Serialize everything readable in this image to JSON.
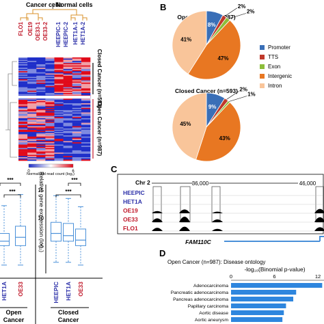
{
  "panel_labels": {
    "b": "B",
    "c": "C",
    "d": "D"
  },
  "panel_a": {
    "group_headers": [
      "Cancer cells",
      "Normal cells"
    ],
    "samples": [
      {
        "name": "FLO1",
        "color": "#c0182a"
      },
      {
        "name": "OE19",
        "color": "#c0182a"
      },
      {
        "name": "OE33-1",
        "color": "#c0182a"
      },
      {
        "name": "OE33-2",
        "color": "#c0182a"
      },
      {
        "name": "HEEPIC-1",
        "color": "#2b2fa8"
      },
      {
        "name": "HEEPIC-2",
        "color": "#2b2fa8"
      },
      {
        "name": "HET1A-1",
        "color": "#2b2fa8"
      },
      {
        "name": "HET1A-2",
        "color": "#2b2fa8"
      }
    ],
    "cluster_labels": [
      "Closed Cancer (n=593)",
      "Open Cancer (n=987)"
    ],
    "colorbar": {
      "min": "0",
      "max": "6",
      "label": "Normalised read count (log₂)"
    }
  },
  "panel_a_box": {
    "y_label": "Relative gene expression (log₂)",
    "y_ticks": [
      "5",
      "10",
      "15"
    ],
    "significance": [
      "***",
      "***",
      "***",
      "***"
    ],
    "groups": [
      {
        "label": "Open Cancer",
        "samples": [
          {
            "name": "HET1A",
            "color": "#2b2fa8",
            "q1": 5.0,
            "median": 5.8,
            "q3": 7.2,
            "lo": 1.5,
            "hi": 12.2
          },
          {
            "name": "OE33",
            "color": "#c0182a",
            "q1": 5.0,
            "median": 6.5,
            "q3": 8.5,
            "lo": 1.5,
            "hi": 14.2
          }
        ]
      },
      {
        "label": "Closed Cancer",
        "samples": [
          {
            "name": "HEEPIC",
            "color": "#2b2fa8",
            "q1": 5.8,
            "median": 7.2,
            "q3": 9.2,
            "lo": 2.0,
            "hi": 14.0
          },
          {
            "name": "HET1A",
            "color": "#2b2fa8",
            "q1": 5.8,
            "median": 6.8,
            "q3": 9.0,
            "lo": 2.0,
            "hi": 13.5
          },
          {
            "name": "OE33",
            "color": "#c0182a",
            "q1": 5.0,
            "median": 6.0,
            "q3": 8.0,
            "lo": 1.5,
            "hi": 12.0
          }
        ]
      }
    ]
  },
  "panel_b": {
    "legend": [
      {
        "name": "Promoter",
        "color": "#3a6fb7"
      },
      {
        "name": "TTS",
        "color": "#c0392b"
      },
      {
        "name": "Exon",
        "color": "#8cbd3a"
      },
      {
        "name": "Intergenic",
        "color": "#e87722"
      },
      {
        "name": "Intron",
        "color": "#f9c59a"
      }
    ],
    "pies": [
      {
        "title": "Open Cancer (n=987)",
        "slices": [
          {
            "name": "Promoter",
            "value": 8,
            "label": "8%"
          },
          {
            "name": "TTS",
            "value": 2,
            "label": "2%"
          },
          {
            "name": "Exon",
            "value": 2,
            "label": "2%"
          },
          {
            "name": "Intergenic",
            "value": 47,
            "label": "47%"
          },
          {
            "name": "Intron",
            "value": 41,
            "label": "41%"
          }
        ]
      },
      {
        "title": "Closed Cancer (n=593)",
        "slices": [
          {
            "name": "Promoter",
            "value": 9,
            "label": "9%"
          },
          {
            "name": "TTS",
            "value": 2,
            "label": "2%"
          },
          {
            "name": "Exon",
            "value": 1,
            "label": "1%"
          },
          {
            "name": "Intergenic",
            "value": 43,
            "label": "43%"
          },
          {
            "name": "Intron",
            "value": 45,
            "label": "45%"
          }
        ]
      }
    ]
  },
  "panel_c": {
    "chromosome": "Chr 2",
    "coords": [
      "36,000",
      "46,000"
    ],
    "tracks": [
      {
        "name": "HEEPIC",
        "color": "#2b2fa8"
      },
      {
        "name": "HET1A",
        "color": "#2b2fa8"
      },
      {
        "name": "OE19",
        "color": "#c0182a"
      },
      {
        "name": "OE33",
        "color": "#c0182a"
      },
      {
        "name": "FLO1",
        "color": "#c0182a"
      }
    ],
    "gene": "FAM110C"
  },
  "panel_d": {
    "title": "Open Cancer (n=987): Disease ontology",
    "axis_label": "-log₁₀(Binomial p-value)",
    "ticks": [
      0,
      6,
      12
    ],
    "bar_color": "#2e86de",
    "terms": [
      {
        "name": "Adenocarcinoma",
        "value": 12.6
      },
      {
        "name": "Pancreatic adenocarcinoma",
        "value": 9.0
      },
      {
        "name": "Pancreas adenocarcinoma",
        "value": 8.6
      },
      {
        "name": "Papillary carcinoma",
        "value": 7.6
      },
      {
        "name": "Aortic disease",
        "value": 7.3
      },
      {
        "name": "Aortic aneurysm",
        "value": 7.1
      }
    ]
  },
  "chart_data": [
    {
      "type": "pie",
      "title": "Open Cancer (n=987)",
      "categories": [
        "Promoter",
        "TTS",
        "Exon",
        "Intergenic",
        "Intron"
      ],
      "values": [
        8,
        2,
        2,
        47,
        41
      ]
    },
    {
      "type": "pie",
      "title": "Closed Cancer (n=593)",
      "categories": [
        "Promoter",
        "TTS",
        "Exon",
        "Intergenic",
        "Intron"
      ],
      "values": [
        9,
        2,
        1,
        43,
        45
      ]
    },
    {
      "type": "bar",
      "title": "Open Cancer (n=987): Disease ontology",
      "categories": [
        "Adenocarcinoma",
        "Pancreatic adenocarcinoma",
        "Pancreas adenocarcinoma",
        "Papillary carcinoma",
        "Aortic disease",
        "Aortic aneurysm"
      ],
      "values": [
        12.6,
        9.0,
        8.6,
        7.6,
        7.3,
        7.1
      ],
      "xlabel": "-log₁₀(Binomial p-value)",
      "xlim": [
        0,
        13
      ]
    }
  ]
}
